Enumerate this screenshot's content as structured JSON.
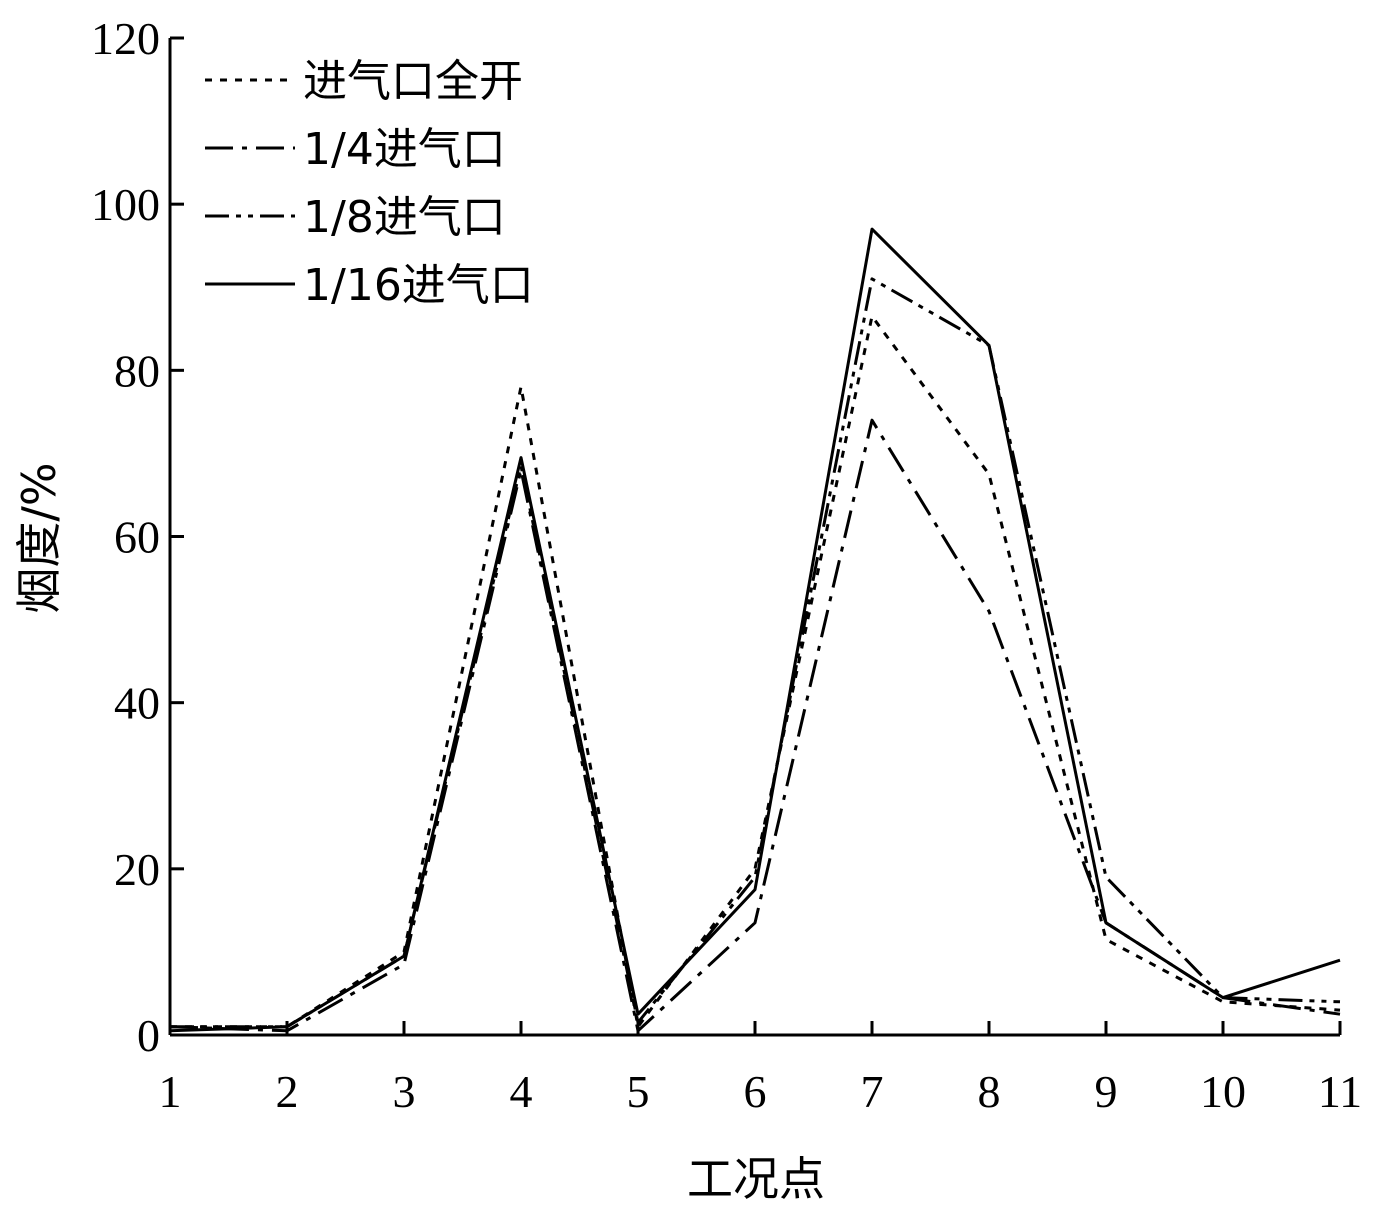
{
  "chart_data": {
    "type": "line",
    "title": "",
    "xlabel": "工况点",
    "ylabel": "烟度/%",
    "x": [
      1,
      2,
      3,
      4,
      5,
      6,
      7,
      8,
      9,
      10,
      11
    ],
    "xlim": [
      1,
      11
    ],
    "ylim": [
      0,
      120
    ],
    "yticks": [
      0,
      20,
      40,
      60,
      80,
      100,
      120
    ],
    "grid": false,
    "legend_position": "top-left",
    "series": [
      {
        "name": "进气口全开",
        "style": "dotted",
        "color": "#000000",
        "values": [
          1.0,
          1.0,
          10.0,
          78.0,
          1.0,
          20.0,
          86.5,
          67.5,
          11.5,
          4.0,
          3.0
        ]
      },
      {
        "name": "1/4进气口",
        "style": "dash-dot",
        "color": "#000000",
        "values": [
          1.0,
          0.5,
          8.5,
          68.0,
          0.5,
          13.5,
          74.0,
          51.0,
          13.5,
          4.5,
          2.5
        ]
      },
      {
        "name": "1/8进气口",
        "style": "dash-dot-dot",
        "color": "#000000",
        "values": [
          1.0,
          1.0,
          9.5,
          68.5,
          1.5,
          19.0,
          91.0,
          83.0,
          19.0,
          4.5,
          4.0
        ]
      },
      {
        "name": "1/16进气口",
        "style": "solid",
        "color": "#000000",
        "values": [
          0.5,
          1.0,
          9.5,
          69.5,
          2.5,
          17.5,
          97.0,
          83.0,
          13.5,
          4.5,
          9.0
        ]
      }
    ]
  }
}
